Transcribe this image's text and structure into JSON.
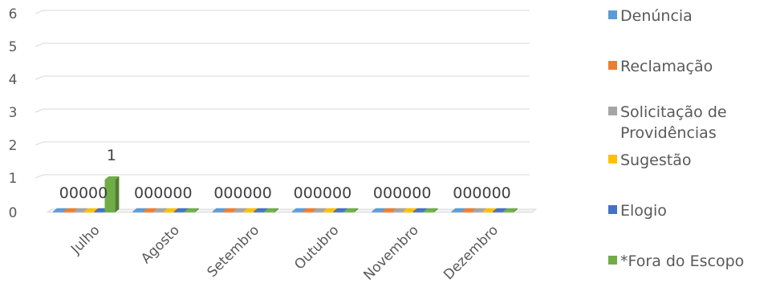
{
  "chart_data": {
    "type": "bar",
    "categories": [
      "Julho",
      "Agosto",
      "Setembro",
      "Outubro",
      "Novembro",
      "Dezembro"
    ],
    "series": [
      {
        "name": "Denúncia",
        "color": "#5B9BD5",
        "values": [
          0,
          0,
          0,
          0,
          0,
          0
        ]
      },
      {
        "name": "Reclamação",
        "color": "#ED7D31",
        "values": [
          0,
          0,
          0,
          0,
          0,
          0
        ]
      },
      {
        "name": "Solicitação de Providências",
        "color": "#A5A5A5",
        "values": [
          0,
          0,
          0,
          0,
          0,
          0
        ]
      },
      {
        "name": "Sugestão",
        "color": "#FFC000",
        "values": [
          0,
          0,
          0,
          0,
          0,
          0
        ]
      },
      {
        "name": "Elogio",
        "color": "#4472C4",
        "values": [
          0,
          0,
          0,
          0,
          0,
          0
        ]
      },
      {
        "name": "*Fora do Escopo",
        "color": "#70AD47",
        "values": [
          1,
          0,
          0,
          0,
          0,
          0
        ]
      }
    ],
    "data_labels": [
      [
        "0",
        "0",
        "0",
        "0",
        "0",
        "1"
      ],
      [
        "0",
        "0",
        "0",
        "0",
        "0",
        "0"
      ],
      [
        "0",
        "0",
        "0",
        "0",
        "0",
        "0"
      ],
      [
        "0",
        "0",
        "0",
        "0",
        "0",
        "0"
      ],
      [
        "0",
        "0",
        "0",
        "0",
        "0",
        "0"
      ],
      [
        "0",
        "0",
        "0",
        "0",
        "0",
        "0"
      ]
    ],
    "yticks": [
      "0",
      "1",
      "2",
      "3",
      "4",
      "5",
      "6"
    ],
    "ylim": [
      0,
      6
    ],
    "grid": true,
    "legend_position": "right",
    "style": "3d-clustered-column"
  }
}
